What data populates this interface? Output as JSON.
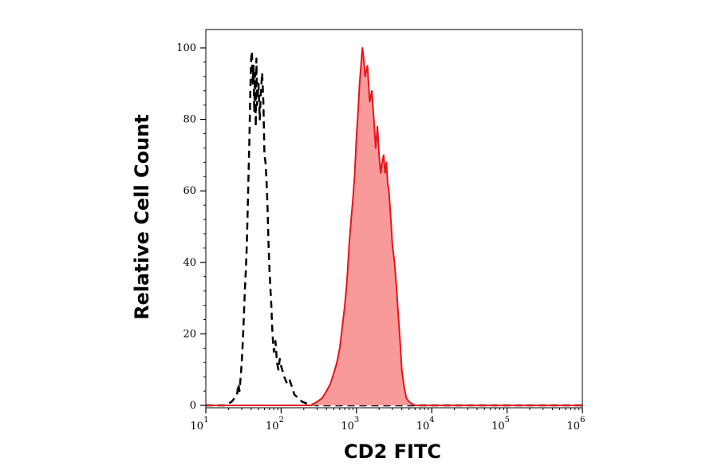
{
  "chart_data": {
    "type": "area",
    "title": "",
    "xlabel": "CD2 FITC",
    "ylabel": "Relative Cell Count",
    "x_scale": "log",
    "xlim": [
      10,
      1000000
    ],
    "ylim": [
      0,
      100
    ],
    "grid": false,
    "legend": "none",
    "x_ticks": [
      {
        "base": "10",
        "exp": "1",
        "value": 10
      },
      {
        "base": "10",
        "exp": "2",
        "value": 100
      },
      {
        "base": "10",
        "exp": "3",
        "value": 1000
      },
      {
        "base": "10",
        "exp": "4",
        "value": 10000
      },
      {
        "base": "10",
        "exp": "5",
        "value": 100000
      },
      {
        "base": "10",
        "exp": "6",
        "value": 1000000
      }
    ],
    "y_ticks": [
      {
        "label": "0",
        "value": 0
      },
      {
        "label": "20",
        "value": 20
      },
      {
        "label": "40",
        "value": 40
      },
      {
        "label": "60",
        "value": 60
      },
      {
        "label": "80",
        "value": 80
      },
      {
        "label": "100",
        "value": 100
      }
    ],
    "series": [
      {
        "style": "dashed",
        "color": "#000000",
        "fill": "none",
        "x": [
          10,
          18,
          22,
          24,
          26,
          27,
          28,
          29,
          30,
          31,
          32,
          33,
          34,
          35,
          36,
          37,
          38,
          39,
          40,
          41,
          42,
          43,
          44,
          45,
          46,
          47,
          48,
          50,
          52,
          54,
          56,
          58,
          60,
          62,
          64,
          66,
          68,
          70,
          72,
          74,
          76,
          78,
          80,
          84,
          88,
          92,
          96,
          100,
          110,
          120,
          130,
          140,
          150,
          170,
          190,
          220,
          300,
          1000,
          10000,
          100000,
          1000000
        ],
        "y": [
          0,
          0,
          1,
          2,
          3,
          6,
          4,
          8,
          12,
          18,
          25,
          32,
          38,
          45,
          55,
          65,
          75,
          88,
          97,
          99,
          90,
          95,
          82,
          93,
          78,
          97,
          84,
          90,
          80,
          88,
          93,
          85,
          70,
          68,
          63,
          55,
          45,
          38,
          33,
          28,
          22,
          18,
          15,
          18,
          12,
          10,
          13,
          11,
          8,
          6,
          7,
          5,
          3,
          2,
          1,
          0.5,
          0,
          0,
          0,
          0,
          0
        ]
      },
      {
        "style": "solid",
        "color": "#e8141a",
        "fill": "#f89a9a",
        "x": [
          10,
          250,
          300,
          350,
          400,
          450,
          500,
          550,
          600,
          650,
          700,
          750,
          800,
          850,
          900,
          950,
          1000,
          1050,
          1100,
          1150,
          1200,
          1250,
          1300,
          1400,
          1500,
          1600,
          1700,
          1800,
          1900,
          2000,
          2100,
          2200,
          2300,
          2400,
          2500,
          2600,
          2700,
          2800,
          2900,
          3000,
          3200,
          3400,
          3600,
          3800,
          4000,
          4300,
          4600,
          5000,
          5400,
          6000,
          7000,
          10000,
          100000,
          1000000
        ],
        "y": [
          0,
          0,
          1,
          2,
          4,
          6,
          9,
          12,
          16,
          22,
          28,
          35,
          45,
          52,
          58,
          65,
          75,
          82,
          90,
          95,
          100,
          97,
          92,
          95,
          85,
          88,
          80,
          72,
          78,
          70,
          65,
          68,
          70,
          65,
          68,
          62,
          60,
          55,
          50,
          45,
          40,
          33,
          25,
          18,
          10,
          5,
          2,
          1,
          0.5,
          0,
          0,
          0,
          0,
          0
        ]
      }
    ]
  }
}
